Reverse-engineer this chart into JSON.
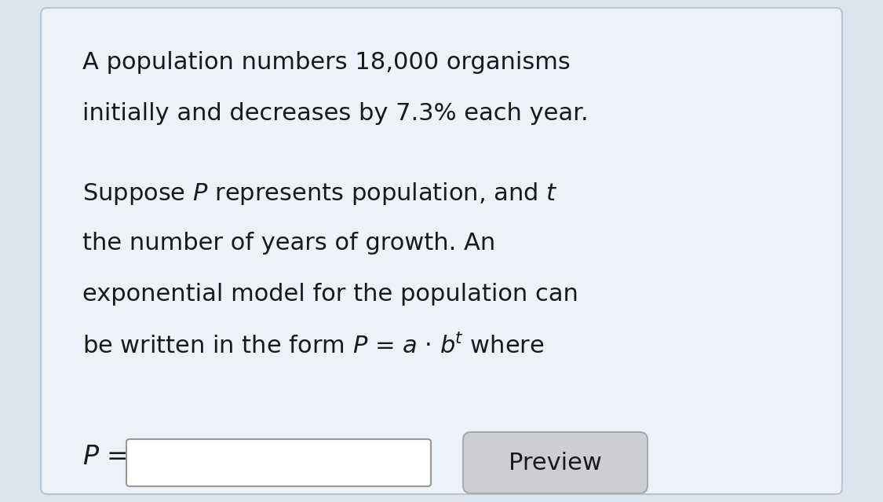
{
  "bg_outer_color": "#dce4ef",
  "card_color": "#edf1f8",
  "border_color": "#b8c4d8",
  "text_color": "#1a1a1a",
  "line1": "A population numbers 18,000 organisms",
  "line2": "initially and decreases by 7.3% each year.",
  "line3": "Suppose $\\mathit{P}$ represents population, and $\\mathit{t}$",
  "line4": "the number of years of growth. An",
  "line5": "exponential model for the population can",
  "line6": "be written in the form $\\mathit{P}$ = $\\mathit{a}$ · $\\mathit{b}$$^{\\mathit{t}}$ where",
  "p_label": "$\\mathit{P}$ =",
  "preview_label": "Preview",
  "input_box_color": "#ffffff",
  "input_box_border": "#999999",
  "preview_box_color": "#ccced4",
  "preview_box_border": "#aaaaaa",
  "font_size_main": 22,
  "figwidth": 11.25,
  "figheight": 6.39,
  "dpi": 100
}
